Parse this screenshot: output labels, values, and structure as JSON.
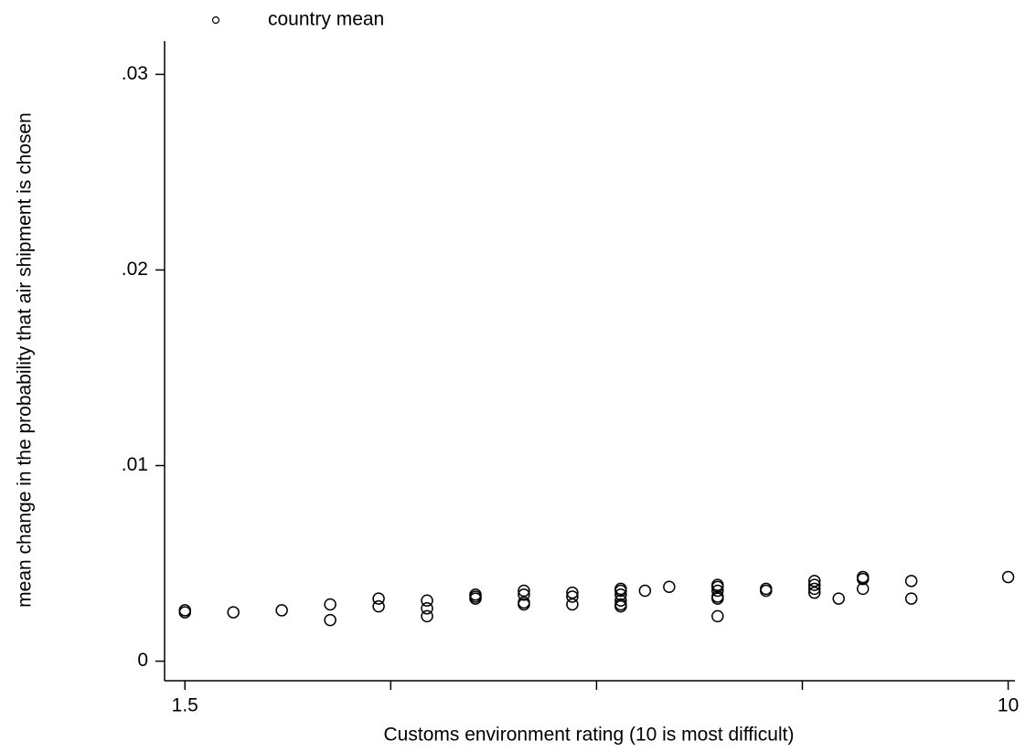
{
  "chart_data": {
    "type": "scatter",
    "x_label": "Customs environment rating (10 is most difficult)",
    "y_label": "mean change in the probability that air shipment is chosen",
    "series": [
      {
        "name": "country mean",
        "color": "#000000",
        "x": [
          1.5,
          1.5,
          2.0,
          2.5,
          3.0,
          3.0,
          3.5,
          3.5,
          4.0,
          4.0,
          4.0,
          4.5,
          4.5,
          4.5,
          5.0,
          5.0,
          5.0,
          5.0,
          5.5,
          5.5,
          5.5,
          6.0,
          6.0,
          6.0,
          6.0,
          6.0,
          6.0,
          6.25,
          6.5,
          7.0,
          7.0,
          7.0,
          7.0,
          7.0,
          7.0,
          7.5,
          7.5,
          8.0,
          8.0,
          8.0,
          8.0,
          8.25,
          8.5,
          8.5,
          8.5,
          9.0,
          9.0,
          10.0
        ],
        "values": [
          0.0026,
          0.0025,
          0.0025,
          0.0026,
          0.0029,
          0.0021,
          0.0032,
          0.0028,
          0.0031,
          0.0027,
          0.0023,
          0.0034,
          0.0033,
          0.0032,
          0.0036,
          0.0034,
          0.003,
          0.0029,
          0.0035,
          0.0033,
          0.0029,
          0.0037,
          0.0036,
          0.0034,
          0.0031,
          0.0029,
          0.0028,
          0.0036,
          0.0038,
          0.0039,
          0.0038,
          0.0036,
          0.0033,
          0.0032,
          0.0023,
          0.0037,
          0.0036,
          0.0041,
          0.0039,
          0.0037,
          0.0035,
          0.0032,
          0.0043,
          0.0042,
          0.0037,
          0.0041,
          0.0032,
          0.0043
        ]
      }
    ],
    "xlim": [
      1.29,
      10.07
    ],
    "xticks": [
      1.5,
      10
    ],
    "xminorticks": [
      3.625,
      5.75,
      7.875
    ],
    "ylim": [
      -0.001,
      0.0317
    ],
    "yticks": [
      0,
      {
        "value": 0.01,
        "label": ".01"
      },
      {
        "value": 0.02,
        "label": ".02"
      },
      {
        "value": 0.03,
        "label": ".03"
      }
    ],
    "grid": false
  }
}
